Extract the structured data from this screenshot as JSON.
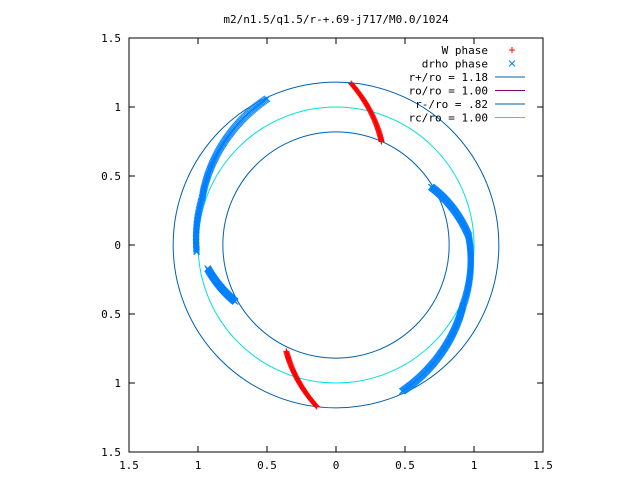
{
  "chart_data": {
    "type": "scatter",
    "title": "m2/n1.5/q1.5/r-+.69-j717/M0.0/1024",
    "xlabel": "",
    "ylabel": "",
    "xlim": [
      -1.5,
      1.5
    ],
    "ylim": [
      -1.5,
      1.5
    ],
    "x_ticks": [
      -1.5,
      -1,
      -0.5,
      0,
      0.5,
      1,
      1.5
    ],
    "y_ticks": [
      -1.5,
      -1,
      -0.5,
      0,
      0.5,
      1,
      1.5
    ],
    "x_tick_labels": [
      "1.5",
      "1",
      "0.5",
      "0",
      "0.5",
      "1",
      "1.5"
    ],
    "y_tick_labels": [
      "1.5",
      "1",
      "0.5",
      "0",
      "0.5",
      "1",
      "1.5"
    ],
    "grid": false,
    "legend_position": "top-right",
    "point_series": [
      {
        "name": "W phase",
        "marker": "plus",
        "color": "#ff0000",
        "arcs": [
          {
            "from": [
              0.11,
              1.17
            ],
            "to": [
              0.33,
              0.75
            ],
            "count": 60
          },
          {
            "from": [
              -0.36,
              -0.77
            ],
            "to": [
              -0.14,
              -1.17
            ],
            "count": 60
          }
        ]
      },
      {
        "name": "drho phase",
        "marker": "cross",
        "color": "#0080ff",
        "arcs": [
          {
            "from": [
              -0.5,
              1.06
            ],
            "to": [
              -0.97,
              0.34
            ],
            "count": 100
          },
          {
            "from": [
              -0.97,
              0.34
            ],
            "to": [
              -1.01,
              -0.05
            ],
            "count": 40
          },
          {
            "from": [
              -0.93,
              -0.17
            ],
            "to": [
              -0.73,
              -0.41
            ],
            "count": 60
          },
          {
            "from": [
              0.69,
              0.42
            ],
            "to": [
              0.96,
              0.07
            ],
            "count": 70
          },
          {
            "from": [
              0.96,
              0.07
            ],
            "to": [
              0.92,
              -0.44
            ],
            "count": 60
          },
          {
            "from": [
              0.92,
              -0.44
            ],
            "to": [
              0.48,
              -1.06
            ],
            "count": 110
          }
        ]
      }
    ],
    "circle_series": [
      {
        "name": "r+/ro = 1.18",
        "radius": 1.18,
        "color": "#0060ad"
      },
      {
        "name": "ro/ro = 1.00",
        "radius": 1.0,
        "color": "#800080",
        "drawn": false
      },
      {
        "name": "r-/ro = .82",
        "radius": 0.82,
        "color": "#0060ad"
      },
      {
        "name": "rc/ro = 1.00",
        "radius": 1.0,
        "color": "#00e0e0"
      }
    ]
  }
}
